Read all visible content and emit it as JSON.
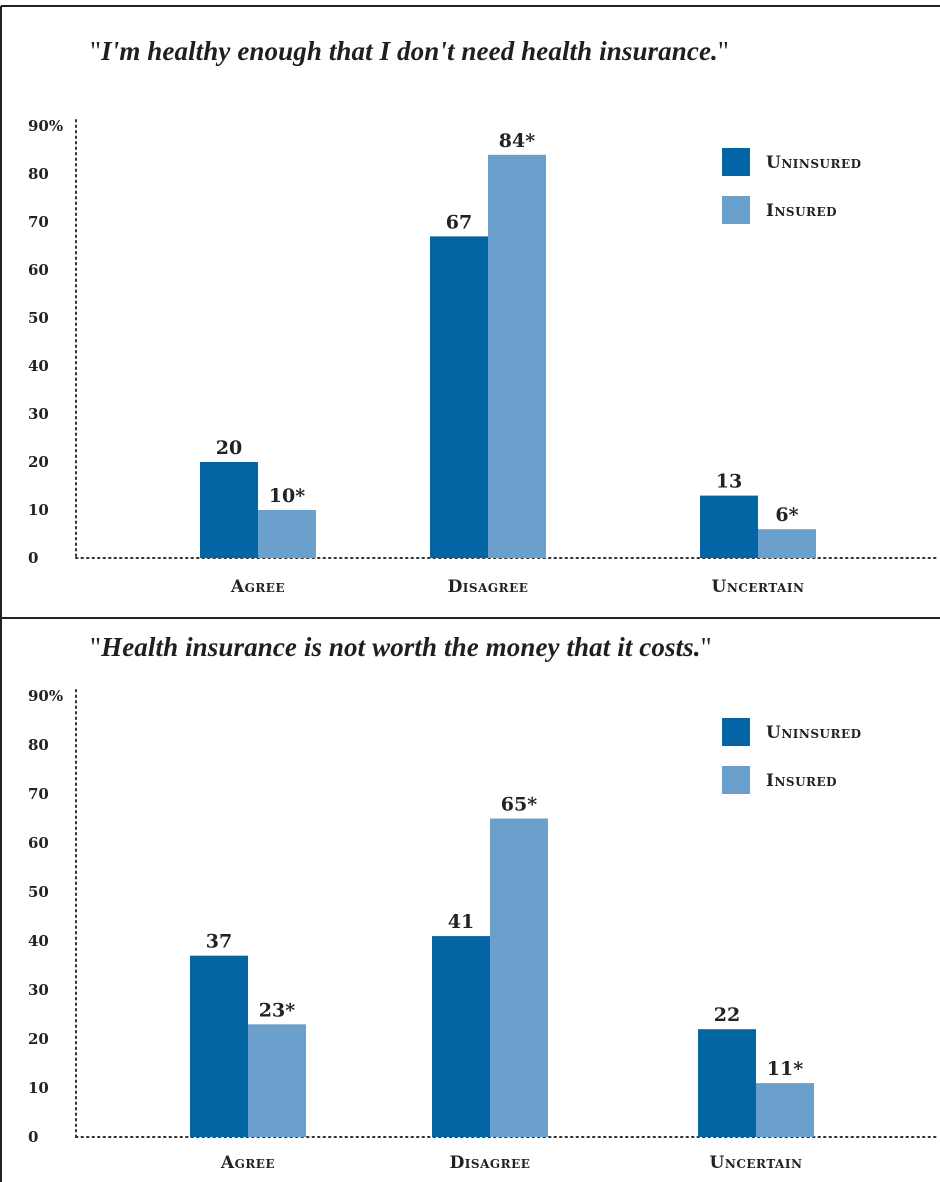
{
  "colors": {
    "uninsured": "#0465a5",
    "insured": "#6b9fcc",
    "frame": "#222222",
    "axis": "#333333"
  },
  "chart_data": [
    {
      "type": "bar",
      "title": "I'm healthy enough that I don't need health insurance.",
      "categories": [
        "Agree",
        "Disagree",
        "Uncertain"
      ],
      "series": [
        {
          "name": "Uninsured",
          "values": [
            20,
            67,
            13
          ],
          "labels": [
            "20",
            "67",
            "13"
          ]
        },
        {
          "name": "Insured",
          "values": [
            10,
            84,
            6
          ],
          "labels": [
            "10*",
            "84*",
            "6*"
          ]
        }
      ],
      "yticks": [
        "0",
        "10",
        "20",
        "30",
        "40",
        "50",
        "60",
        "70",
        "80",
        "90%"
      ],
      "ylim": [
        0,
        90
      ],
      "grid": false,
      "legend_position": "top-right"
    },
    {
      "type": "bar",
      "title": "Health insurance is not worth the money that it costs.",
      "categories": [
        "Agree",
        "Disagree",
        "Uncertain"
      ],
      "series": [
        {
          "name": "Uninsured",
          "values": [
            37,
            41,
            22
          ],
          "labels": [
            "37",
            "41",
            "22"
          ]
        },
        {
          "name": "Insured",
          "values": [
            23,
            65,
            11
          ],
          "labels": [
            "23*",
            "65*",
            "11*"
          ]
        }
      ],
      "yticks": [
        "0",
        "10",
        "20",
        "30",
        "40",
        "50",
        "60",
        "70",
        "80",
        "90%"
      ],
      "ylim": [
        0,
        90
      ],
      "grid": false,
      "legend_position": "top-right"
    }
  ]
}
